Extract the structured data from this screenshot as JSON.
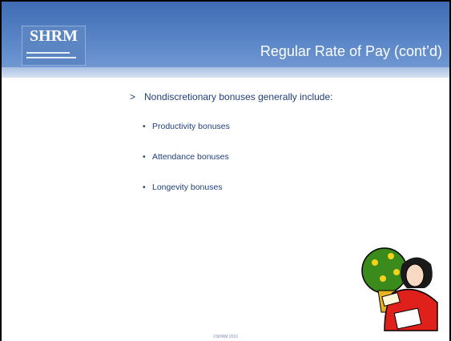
{
  "logo": {
    "letters": "SHRM"
  },
  "header": {
    "title": "Regular Rate of Pay (cont’d)"
  },
  "content": {
    "main_marker": ">",
    "main_bullet": "Nondiscretionary bonuses generally include:",
    "sub_marker": "•",
    "sub_bullets": [
      "Productivity bonuses",
      "Attendance bonuses",
      "Longevity bonuses"
    ]
  },
  "footer": {
    "copyright": "©SHRM 2010"
  }
}
